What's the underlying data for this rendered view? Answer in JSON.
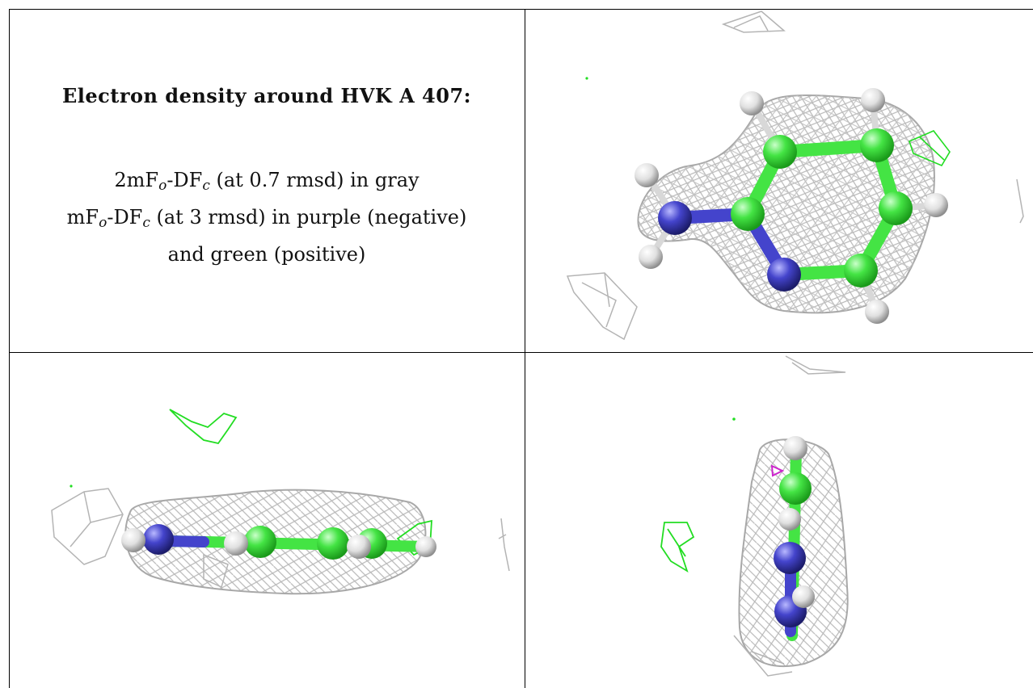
{
  "caption": {
    "title": "Electron density around HVK A 407:",
    "line1": {
      "prefix": "2mF",
      "sub_o": "o",
      "mid": "-DF",
      "sub_c": "c",
      "suffix": " (at 0.7 rmsd) in gray"
    },
    "line2": {
      "prefix": "mF",
      "sub_o": "o",
      "mid": "-DF",
      "sub_c": "c",
      "suffix": " (at 3 rmsd) in purple (negative)"
    },
    "line3": "and green (positive)"
  },
  "colors": {
    "mesh_2fofc": "#b4b4b4",
    "mesh_fofc_positive": "#22dd22",
    "mesh_fofc_negative": "#cc22cc",
    "carbon": "#44e444",
    "nitrogen": "#4040c8",
    "hydrogen": "#e6e6e6"
  },
  "panels": [
    {
      "name": "caption-panel"
    },
    {
      "name": "view-top"
    },
    {
      "name": "view-side"
    },
    {
      "name": "view-edge"
    }
  ]
}
